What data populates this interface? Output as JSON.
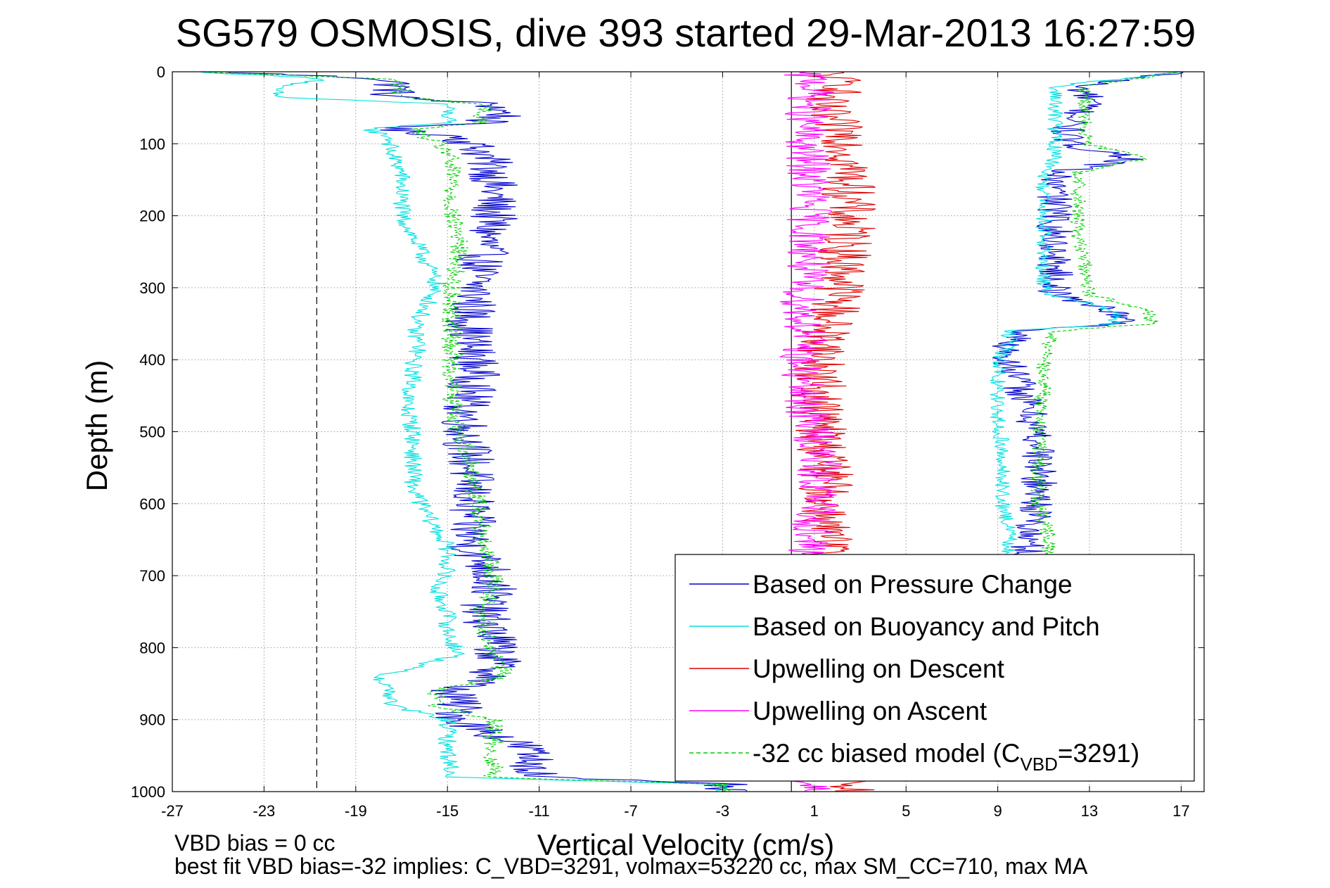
{
  "chart_data": {
    "type": "line",
    "title": "SG579 OSMOSIS, dive 393 started 29-Mar-2013 16:27:59",
    "xlabel": "Vertical Velocity (cm/s)",
    "ylabel": "Depth (m)",
    "xlim": [
      -27,
      18
    ],
    "ylim": [
      0,
      1000
    ],
    "y_reversed": true,
    "xticks": [
      -27,
      -23,
      -19,
      -15,
      -11,
      -7,
      -3,
      1,
      5,
      9,
      13,
      17
    ],
    "yticks": [
      0,
      100,
      200,
      300,
      400,
      500,
      600,
      700,
      800,
      900,
      1000
    ],
    "grid": true,
    "legend_position": "bottom-right",
    "reference_lines": [
      {
        "x": -20.7,
        "style": "dashed"
      },
      {
        "x": 0,
        "style": "solid"
      }
    ],
    "depth": [
      0,
      10,
      20,
      35,
      45,
      60,
      70,
      80,
      90,
      110,
      140,
      170,
      200,
      230,
      260,
      290,
      320,
      340,
      355,
      380,
      400,
      430,
      460,
      500,
      540,
      580,
      620,
      660,
      690,
      720,
      750,
      780,
      810,
      840,
      860,
      880,
      900,
      940,
      980,
      990,
      1000
    ],
    "series": [
      {
        "name": "Based on Pressure Change",
        "color": "#0000cc",
        "style": "solid",
        "values": [
          -25,
          -17.5,
          -17.2,
          -17.5,
          -13,
          -12.5,
          -13.5,
          -17.8,
          -14.5,
          -13.5,
          -13,
          -13,
          -13,
          -13.3,
          -13.5,
          -13.8,
          -13.8,
          -14,
          -14,
          -14,
          -13.8,
          -13.8,
          -14.2,
          -14.2,
          -14,
          -14,
          -14,
          -14,
          -13.2,
          -13,
          -13.5,
          -13,
          -12.8,
          -13,
          -14.8,
          -14.5,
          -14.5,
          -11.5,
          -11,
          -3,
          -3
        ]
      },
      {
        "name": "Based on Buoyancy and Pitch",
        "color": "#00e0e0",
        "style": "solid",
        "values": [
          -26,
          -20,
          -22.5,
          -22.5,
          -15,
          -15,
          -15,
          -18.5,
          -17.5,
          -17.5,
          -17,
          -17,
          -17,
          -16.5,
          -16,
          -15.5,
          -15.8,
          -16.2,
          -16.5,
          -16.2,
          -16.5,
          -16.5,
          -16.8,
          -16.5,
          -16.5,
          -16.5,
          -15.8,
          -15,
          -15,
          -15.5,
          -15,
          -15,
          -14.5,
          -18,
          -17.5,
          -17.5,
          -15,
          -15,
          -14.8,
          -3,
          -3
        ]
      },
      {
        "name": "Upwelling on Descent",
        "color": "#e00000",
        "style": "solid",
        "values": [
          1.5,
          1.8,
          2.5,
          1.5,
          1.2,
          1.5,
          1.8,
          2,
          2.5,
          2.5,
          2.5,
          2.5,
          2.5,
          2.5,
          2.3,
          2.3,
          2,
          1.8,
          1.5,
          1.5,
          1.3,
          1.2,
          1.2,
          1.3,
          1.5,
          1.5,
          1.5,
          1.5,
          1.5,
          1.5,
          1.5,
          1.5,
          1.5,
          1.5,
          1.5,
          1.5,
          1.5,
          1.5,
          1.5,
          2.5,
          2.5
        ]
      },
      {
        "name": "Upwelling on Ascent",
        "color": "#ff00ff",
        "style": "solid",
        "values": [
          0,
          1,
          1,
          0.8,
          0.8,
          0.7,
          0.6,
          0.6,
          0.5,
          0.6,
          0.8,
          0.8,
          0.8,
          0.8,
          0.8,
          0.5,
          0.5,
          0.5,
          0.6,
          0.6,
          0.4,
          0.4,
          0.6,
          1,
          1.2,
          1.2,
          1,
          0.8,
          0.8,
          0.8,
          0.8,
          0.8,
          0.8,
          0.8,
          0.8,
          0.8,
          0.8,
          0.8,
          0.8,
          0.8,
          0.8
        ]
      },
      {
        "name": "-32 cc biased model (CVBD=3291)",
        "legend_main": "-32 cc biased model (C",
        "legend_sub": "VBD",
        "legend_tail": "=3291)",
        "color": "#00cc00",
        "style": "dashed",
        "values": [
          -26,
          -17.5,
          -17,
          -17,
          -13.5,
          -13.5,
          -13.5,
          -16.5,
          -16,
          -15,
          -14.8,
          -14.8,
          -14.8,
          -14.5,
          -14.5,
          -14.8,
          -14.8,
          -14.8,
          -14.8,
          -14.8,
          -14.8,
          -14.8,
          -14.8,
          -14.5,
          -14,
          -13.8,
          -13.5,
          -13.5,
          -13,
          -13,
          -13.5,
          -13.3,
          -13,
          -12.5,
          -15.5,
          -15.5,
          -13,
          -13,
          -13,
          -3,
          -3
        ]
      }
    ],
    "ascent_overlay": [
      {
        "series": "Based on Pressure Change",
        "color": "#0000cc",
        "style": "solid",
        "depth": [
          0,
          20,
          40,
          60,
          80,
          100,
          120,
          140,
          160,
          180,
          200,
          230,
          260,
          290,
          310,
          330,
          350,
          360,
          380,
          400,
          440,
          480,
          520,
          560,
          600,
          640,
          680
        ],
        "values": [
          17,
          12.5,
          13,
          12.5,
          12,
          12,
          15,
          11.5,
          11.5,
          11.5,
          11.5,
          11.5,
          11.5,
          11.5,
          11.5,
          14,
          14.5,
          10,
          9.5,
          9.5,
          10,
          10.5,
          10.8,
          10.8,
          10.8,
          10.3,
          10.3
        ]
      },
      {
        "series": "Based on Buoyancy and Pitch",
        "color": "#00e0e0",
        "style": "solid",
        "depth": [
          0,
          20,
          40,
          60,
          80,
          100,
          120,
          140,
          160,
          180,
          200,
          230,
          260,
          290,
          310,
          330,
          350,
          360,
          380,
          400,
          440,
          480,
          520,
          560,
          600,
          640,
          680
        ],
        "values": [
          17,
          11.5,
          11.5,
          11.5,
          11.5,
          11.5,
          11.5,
          11,
          11,
          11,
          11,
          11,
          11,
          11,
          11.2,
          14,
          14.2,
          9.5,
          9.5,
          9,
          9,
          9,
          9.2,
          9.2,
          9.2,
          9.5,
          9.5
        ]
      },
      {
        "series": "-32 cc biased model (CVBD=3291)",
        "color": "#00cc00",
        "style": "dashed",
        "depth": [
          0,
          20,
          40,
          60,
          80,
          100,
          120,
          140,
          160,
          180,
          200,
          230,
          260,
          290,
          310,
          330,
          350,
          360,
          380,
          400,
          440,
          480,
          520,
          560,
          600,
          640,
          680
        ],
        "values": [
          17,
          12.8,
          12.8,
          12.8,
          12.8,
          12.8,
          15.5,
          12.5,
          12.5,
          12.5,
          12.5,
          12.5,
          12.8,
          12.8,
          13,
          15.5,
          15.8,
          11.5,
          11.2,
          11,
          11,
          10.8,
          10.8,
          10.8,
          10.8,
          11.2,
          11.2
        ]
      }
    ]
  },
  "notes": {
    "line1": "VBD bias = 0 cc",
    "line2": "best fit VBD bias=-32 implies: C_VBD=3291, volmax=53220 cc, max SM_CC=710, max MA"
  }
}
